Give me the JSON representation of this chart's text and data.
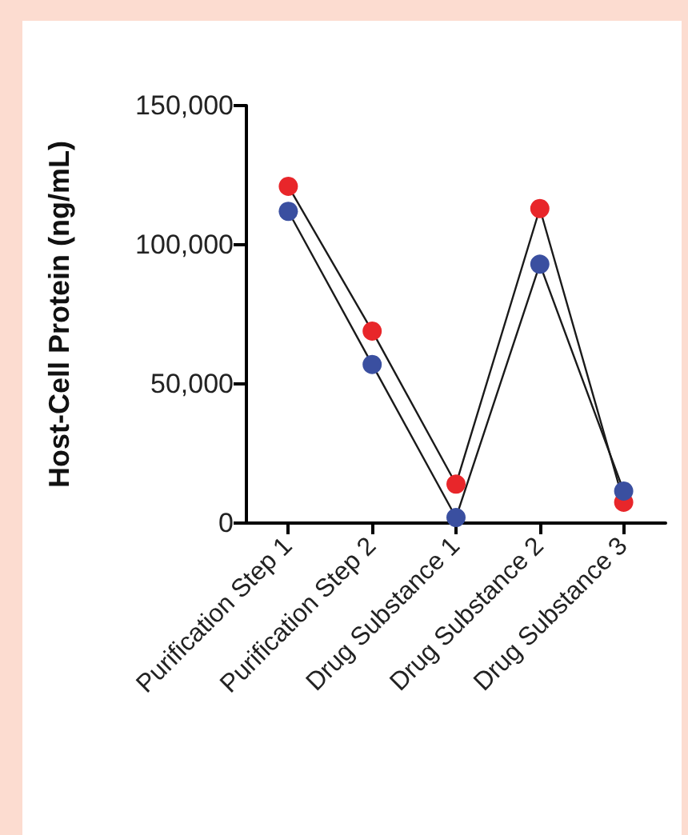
{
  "chart_data": {
    "type": "line",
    "ylabel": "Host-Cell Protein (ng/mL)",
    "categories": [
      "Purification Step 1",
      "Purification Step 2",
      "Drug Substance 1",
      "Drug Substance 2",
      "Drug Substance 3"
    ],
    "series": [
      {
        "color": "#e8262a",
        "values": [
          121000,
          69000,
          14000,
          113000,
          7500
        ]
      },
      {
        "color": "#3a4fa0",
        "values": [
          112000,
          57000,
          2000,
          93000,
          11500
        ]
      }
    ],
    "ylim": [
      0,
      150000
    ],
    "yticks": [
      0,
      {
        "value": 50000,
        "label": "50,000"
      },
      {
        "value": 100000,
        "label": "100,000"
      },
      {
        "value": 150000,
        "label": "150,000"
      }
    ],
    "grid": false,
    "marker": "circle",
    "line_style": "solid"
  }
}
